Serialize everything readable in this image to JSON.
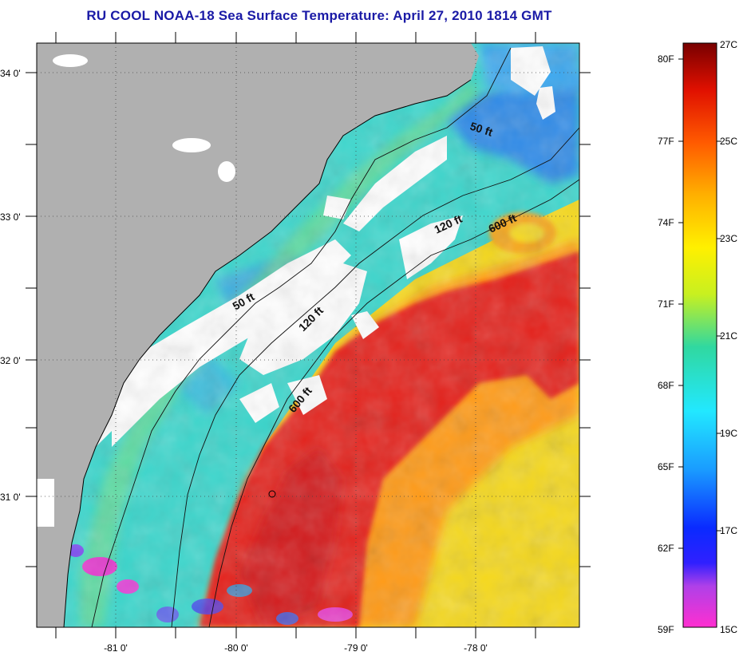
{
  "title": "RU COOL  NOAA-18  Sea Surface Temperature:  April 27, 2010 1814 GMT",
  "axes": {
    "longitude_ticks": [
      "-81 0'",
      "-80 0'",
      "-79 0'",
      "-78 0'"
    ],
    "latitude_ticks": [
      "34 0'",
      "33 0'",
      "32 0'",
      "31 0'"
    ]
  },
  "contours": {
    "labels": [
      "50 ft",
      "50 ft",
      "120 ft",
      "120 ft",
      "600 ft",
      "600 ft"
    ]
  },
  "colorbar": {
    "fahrenheit_labels": [
      "80F",
      "77F",
      "74F",
      "71F",
      "68F",
      "65F",
      "62F",
      "59F"
    ],
    "celsius_labels": [
      "27C",
      "25C",
      "23C",
      "21C",
      "19C",
      "17C",
      "15C"
    ]
  },
  "colors": {
    "land": "#b0b0b0",
    "cloud": "#ffffff",
    "cold_water": "#2f8fe8",
    "shelf_water": "#34d8d0",
    "warm_water": "#e62a12",
    "gulf_stream_edge": "#f3e21a"
  }
}
